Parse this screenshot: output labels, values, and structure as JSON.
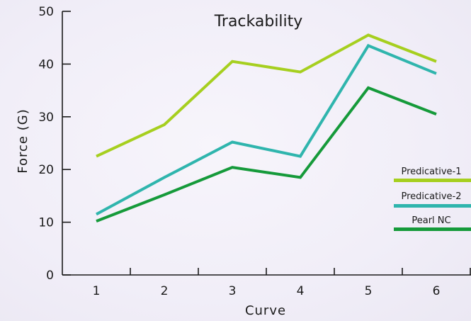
{
  "chart_data": {
    "type": "line",
    "title": "Trackability",
    "xlabel": "Curve",
    "ylabel": "Force (G)",
    "categories": [
      "1",
      "2",
      "3",
      "4",
      "5",
      "6"
    ],
    "yticks": [
      "0",
      "10",
      "20",
      "30",
      "40",
      "50"
    ],
    "ylim": [
      0,
      50
    ],
    "grid": false,
    "legend_position": "right",
    "series": [
      {
        "name": "Predicative-1",
        "color": "#a6cf1f",
        "values": [
          22.5,
          28.5,
          40.5,
          38.5,
          45.5,
          40.5
        ]
      },
      {
        "name": "Predicative-2",
        "color": "#2fb5ad",
        "values": [
          11.5,
          18.5,
          25.2,
          22.5,
          43.5,
          38.2
        ]
      },
      {
        "name": "Pearl NC",
        "color": "#159a3a",
        "values": [
          10.2,
          15.2,
          20.4,
          18.5,
          35.5,
          30.5
        ]
      }
    ]
  }
}
